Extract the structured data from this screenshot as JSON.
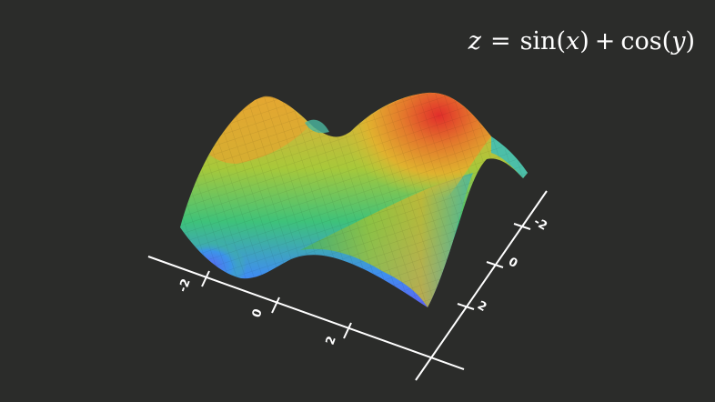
{
  "formula": {
    "lhs": "z",
    "equals": "=",
    "sin": "sin",
    "sin_arg": "x",
    "plus": "+",
    "cos": "cos",
    "cos_arg": "y",
    "lparen": "(",
    "rparen": ")"
  },
  "axes": {
    "x_tick_labels": [
      "-2",
      "0",
      "2"
    ],
    "y_tick_labels": [
      "-2",
      "0",
      "2"
    ]
  },
  "colors": {
    "background": "#2b2c2a",
    "axis": "#ffffff",
    "surface_high": "#e02020",
    "surface_mid": "#e8c020",
    "surface_low": "#4060f0"
  }
}
